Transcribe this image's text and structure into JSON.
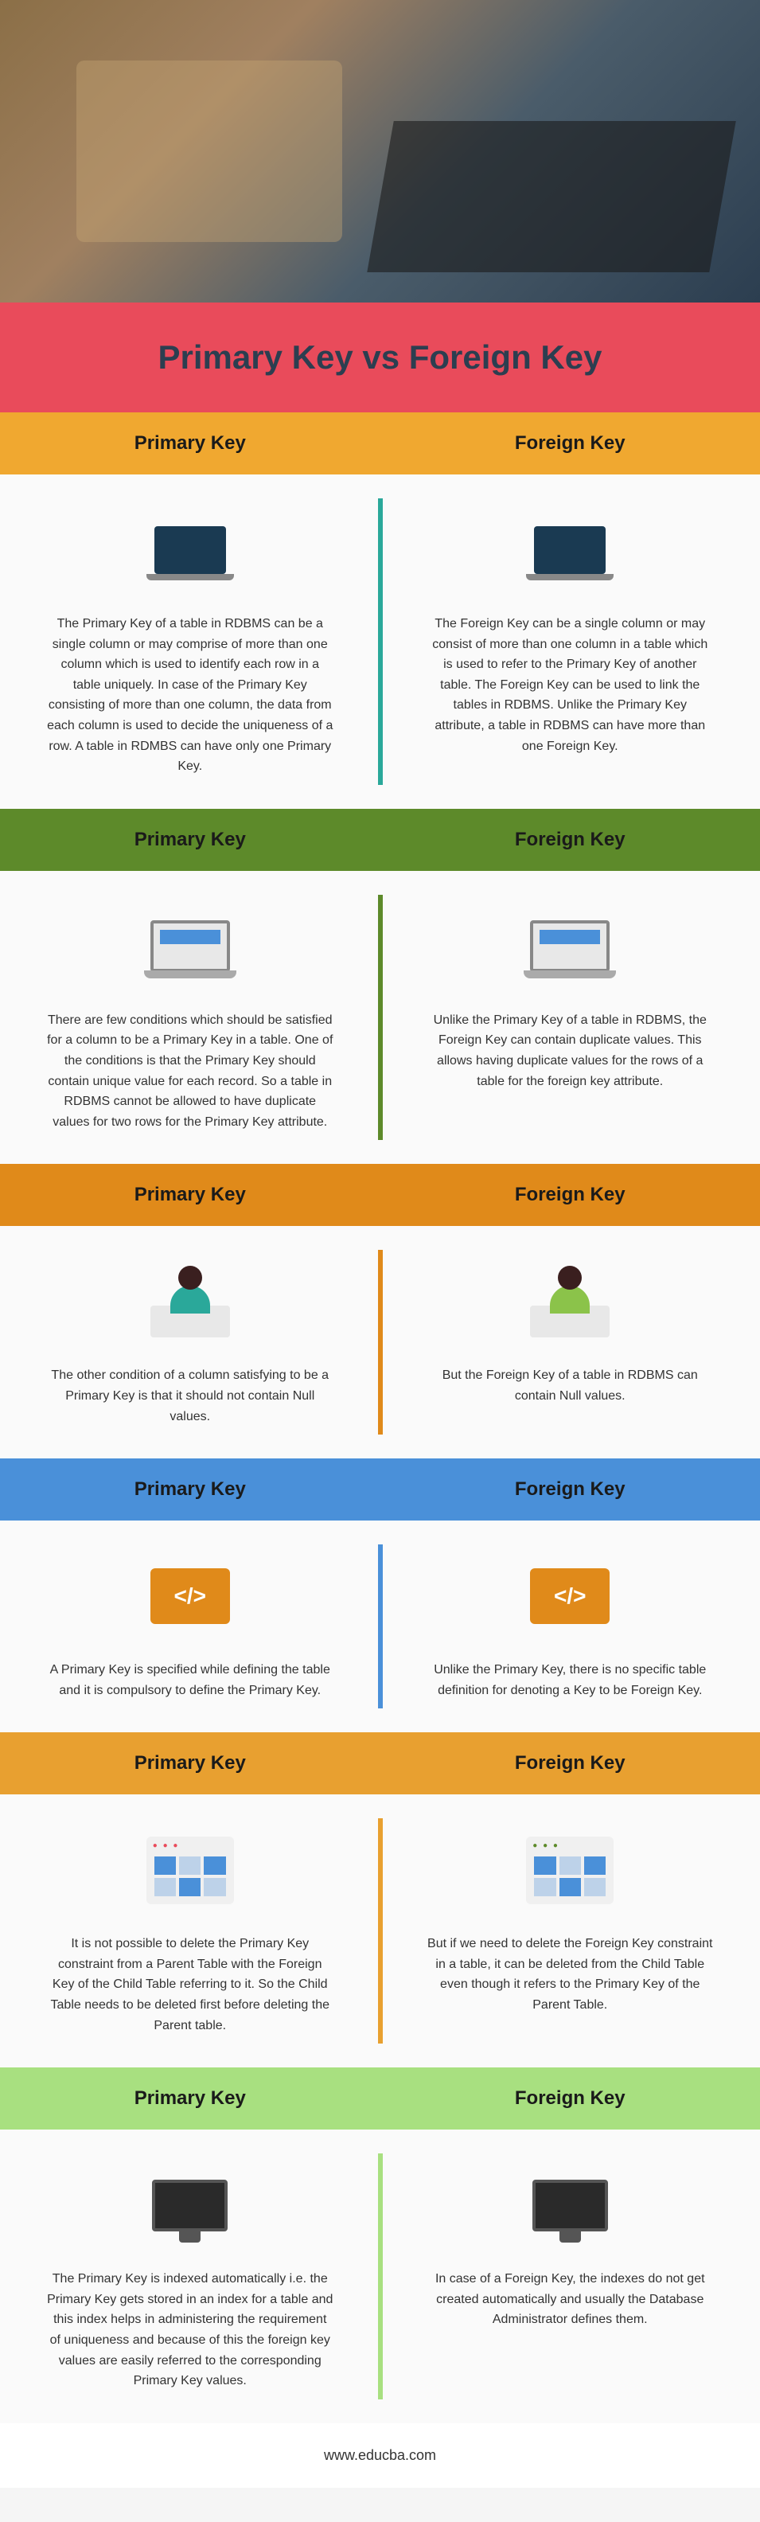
{
  "title": "Primary Key vs Foreign Key",
  "title_bg": "#e94b5b",
  "footer": "www.educba.com",
  "col_left_label": "Primary Key",
  "col_right_label": "Foreign Key",
  "sections": [
    {
      "header_bg": "#f0a830",
      "divider_color": "#2aa89a",
      "icon_type": "laptop",
      "left_head_color": "#3a1f6b",
      "right_head_color": "#1a8fb8",
      "left": "The Primary Key of a table in RDBMS can be a single column or may comprise of more than one column which is used to identify each row in a table uniquely. In case of the Primary Key consisting of more than one column, the data from each column is used to decide the uniqueness of a row. A table in RDMBS can have only one Primary Key.",
      "right": "The Foreign Key can be a single column or may consist of more than one column in a table which is used to refer to the Primary Key of another table. The Foreign Key can be used to link the tables in RDBMS. Unlike the Primary Key attribute, a table in RDBMS can have more than one Foreign Key."
    },
    {
      "header_bg": "#5d8a2a",
      "divider_color": "#5d8a2a",
      "icon_type": "laptop-screen",
      "left": "There are few conditions which should be satisfied for a column to be a Primary Key in a table. One of the conditions is that the Primary Key should contain unique value for each record. So a table in RDBMS cannot be allowed to have duplicate values for two rows for the Primary Key attribute.",
      "right": "Unlike the Primary Key of a table in RDBMS, the Foreign Key can contain duplicate values. This allows having duplicate values for the rows of a table for the foreign key attribute."
    },
    {
      "header_bg": "#e08a1a",
      "divider_color": "#e08a1a",
      "icon_type": "person",
      "left_head_color": "#3a1f1f",
      "right_head_color": "#3a1f1f",
      "left_body_color": "#2aa89a",
      "right_body_color": "#8bc34a",
      "left": "The other condition of a column satisfying to be a Primary Key is that it should not contain Null values.",
      "right": "But the Foreign Key of a table in RDBMS can contain Null values."
    },
    {
      "header_bg": "#4a90d9",
      "divider_color": "#4a90d9",
      "icon_type": "code",
      "left_color": "#e08a1a",
      "right_color": "#e08a1a",
      "left": "A Primary Key is specified while defining the table and it is compulsory to define the Primary Key.",
      "right": "Unlike the Primary Key, there is no specific table definition for denoting a Key to be Foreign Key."
    },
    {
      "header_bg": "#e8a030",
      "divider_color": "#e8a030",
      "icon_type": "app",
      "left_dots_color": "#e94b5b",
      "right_dots_color": "#5d8a2a",
      "left": "It is not possible to delete the Primary Key constraint from a Parent Table with the Foreign Key of the Child Table referring to it. So the Child Table needs to be deleted first before deleting the Parent table.",
      "right": "But if we need to delete the Foreign Key constraint in a table, it can be deleted from the Child Table even though it refers to the Primary Key of the Parent Table."
    },
    {
      "header_bg": "#a8e080",
      "divider_color": "#a8e080",
      "icon_type": "monitor",
      "left": "The Primary Key is indexed automatically i.e. the Primary Key gets stored in an index for a table and this index helps in administering the requirement of uniqueness and because of this the foreign key values are easily referred to the corresponding Primary Key values.",
      "right": "In case of a Foreign Key, the indexes do not get created automatically and usually the Database Administrator defines them."
    }
  ]
}
